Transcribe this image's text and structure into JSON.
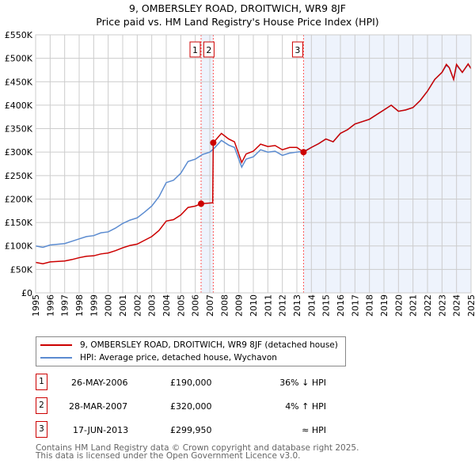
{
  "title": "9, OMBERSLEY ROAD, DROITWICH, WR9 8JF",
  "subtitle": "Price paid vs. HM Land Registry's House Price Index (HPI)",
  "chart_data": {
    "type": "line",
    "title": "9, OMBERSLEY ROAD, DROITWICH, WR9 8JF",
    "subtitle": "Price paid vs. HM Land Registry's House Price Index (HPI)",
    "xlim": [
      1995,
      2025
    ],
    "ylim": [
      0,
      550000
    ],
    "x_ticks": [
      "1995",
      "1996",
      "1997",
      "1998",
      "1999",
      "2000",
      "2001",
      "2002",
      "2003",
      "2004",
      "2005",
      "2006",
      "2007",
      "2008",
      "2009",
      "2010",
      "2011",
      "2012",
      "2013",
      "2014",
      "2015",
      "2016",
      "2017",
      "2018",
      "2019",
      "2020",
      "2021",
      "2022",
      "2023",
      "2024",
      "2025"
    ],
    "y_ticks": [
      {
        "v": 0,
        "l": "£0"
      },
      {
        "v": 50000,
        "l": "£50K"
      },
      {
        "v": 100000,
        "l": "£100K"
      },
      {
        "v": 150000,
        "l": "£150K"
      },
      {
        "v": 200000,
        "l": "£200K"
      },
      {
        "v": 250000,
        "l": "£250K"
      },
      {
        "v": 300000,
        "l": "£300K"
      },
      {
        "v": 350000,
        "l": "£350K"
      },
      {
        "v": 400000,
        "l": "£400K"
      },
      {
        "v": 450000,
        "l": "£450K"
      },
      {
        "v": 500000,
        "l": "£500K"
      },
      {
        "v": 550000,
        "l": "£550K"
      }
    ],
    "grid": true,
    "series": [
      {
        "name": "9, OMBERSLEY ROAD, DROITWICH, WR9 8JF (detached house)",
        "color": "#cc0000",
        "x": [
          1995,
          1995.5,
          1996,
          1997,
          1997.5,
          1998,
          1998.5,
          1999,
          1999.5,
          2000,
          2000.5,
          2001,
          2001.5,
          2002,
          2002.5,
          2003,
          2003.5,
          2004,
          2004.5,
          2005,
          2005.5,
          2006,
          2006.4,
          2007.2,
          2007.24,
          2007.8,
          2008.3,
          2008.7,
          2009.2,
          2009.5,
          2010,
          2010.5,
          2011,
          2011.5,
          2012,
          2012.5,
          2013,
          2013.46,
          2014,
          2014.5,
          2015,
          2015.5,
          2016,
          2016.5,
          2017,
          2017.5,
          2018,
          2018.5,
          2019,
          2019.5,
          2020,
          2020.5,
          2021,
          2021.5,
          2022,
          2022.5,
          2023,
          2023.3,
          2023.5,
          2023.8,
          2024,
          2024.4,
          2024.8,
          2025
        ],
        "y": [
          65000,
          62000,
          66000,
          68000,
          71000,
          75000,
          78000,
          79000,
          83000,
          85000,
          90000,
          96000,
          101000,
          104000,
          112000,
          120000,
          133000,
          153000,
          156000,
          166000,
          182000,
          185000,
          190000,
          192000,
          320000,
          340000,
          328000,
          322000,
          278000,
          296000,
          302000,
          317000,
          312000,
          314000,
          305000,
          310000,
          310000,
          299950,
          310000,
          318000,
          328000,
          322000,
          340000,
          348000,
          360000,
          365000,
          370000,
          380000,
          390000,
          400000,
          387000,
          390000,
          395000,
          410000,
          430000,
          455000,
          470000,
          487000,
          480000,
          455000,
          487000,
          470000,
          488000,
          478000
        ]
      },
      {
        "name": "HPI: Average price, detached house, Wychavon",
        "color": "#5b8bd0",
        "x": [
          1995,
          1995.5,
          1996,
          1997,
          1997.5,
          1998,
          1998.5,
          1999,
          1999.5,
          2000,
          2000.5,
          2001,
          2001.5,
          2002,
          2002.5,
          2003,
          2003.5,
          2004,
          2004.5,
          2005,
          2005.5,
          2006,
          2006.5,
          2007,
          2007.3,
          2007.8,
          2008.3,
          2008.7,
          2009.2,
          2009.5,
          2010,
          2010.5,
          2011,
          2011.5,
          2012,
          2012.5,
          2013,
          2013.5,
          2014,
          2014.5,
          2015,
          2015.5,
          2016,
          2016.5,
          2017,
          2017.5,
          2018,
          2018.5,
          2019,
          2019.5,
          2020,
          2020.5,
          2021,
          2021.5,
          2022,
          2022.5,
          2023,
          2023.3,
          2023.5,
          2023.8,
          2024,
          2024.4,
          2024.8,
          2025
        ],
        "y": [
          100000,
          97000,
          102000,
          105000,
          110000,
          115000,
          120000,
          122000,
          128000,
          130000,
          138000,
          148000,
          155000,
          160000,
          172000,
          185000,
          205000,
          235000,
          240000,
          255000,
          280000,
          285000,
          295000,
          300000,
          308000,
          325000,
          315000,
          310000,
          268000,
          285000,
          290000,
          305000,
          300000,
          302000,
          293000,
          298000,
          300000,
          302000,
          310000,
          318000,
          328000,
          322000,
          340000,
          348000,
          360000,
          365000,
          370000,
          380000,
          390000,
          400000,
          387000,
          390000,
          395000,
          410000,
          430000,
          455000,
          470000,
          485000,
          480000,
          455000,
          485000,
          470000,
          487000,
          478000
        ]
      }
    ],
    "sales": [
      {
        "n": "1",
        "x": 2006.4,
        "y": 190000
      },
      {
        "n": "2",
        "x": 2007.24,
        "y": 320000
      },
      {
        "n": "3",
        "x": 2013.46,
        "y": 299950
      }
    ],
    "legend_placement": "below"
  },
  "legend": [
    "9, OMBERSLEY ROAD, DROITWICH, WR9 8JF (detached house)",
    "HPI: Average price, detached house, Wychavon"
  ],
  "transactions": [
    {
      "n": "1",
      "date": "26-MAY-2006",
      "price": "£190,000",
      "hpi": "36% ↓ HPI"
    },
    {
      "n": "2",
      "date": "28-MAR-2007",
      "price": "£320,000",
      "hpi": "4% ↑ HPI"
    },
    {
      "n": "3",
      "date": "17-JUN-2013",
      "price": "£299,950",
      "hpi": "≈ HPI"
    }
  ],
  "footer": [
    "Contains HM Land Registry data © Crown copyright and database right 2025.",
    "This data is licensed under the Open Government Licence v3.0."
  ]
}
